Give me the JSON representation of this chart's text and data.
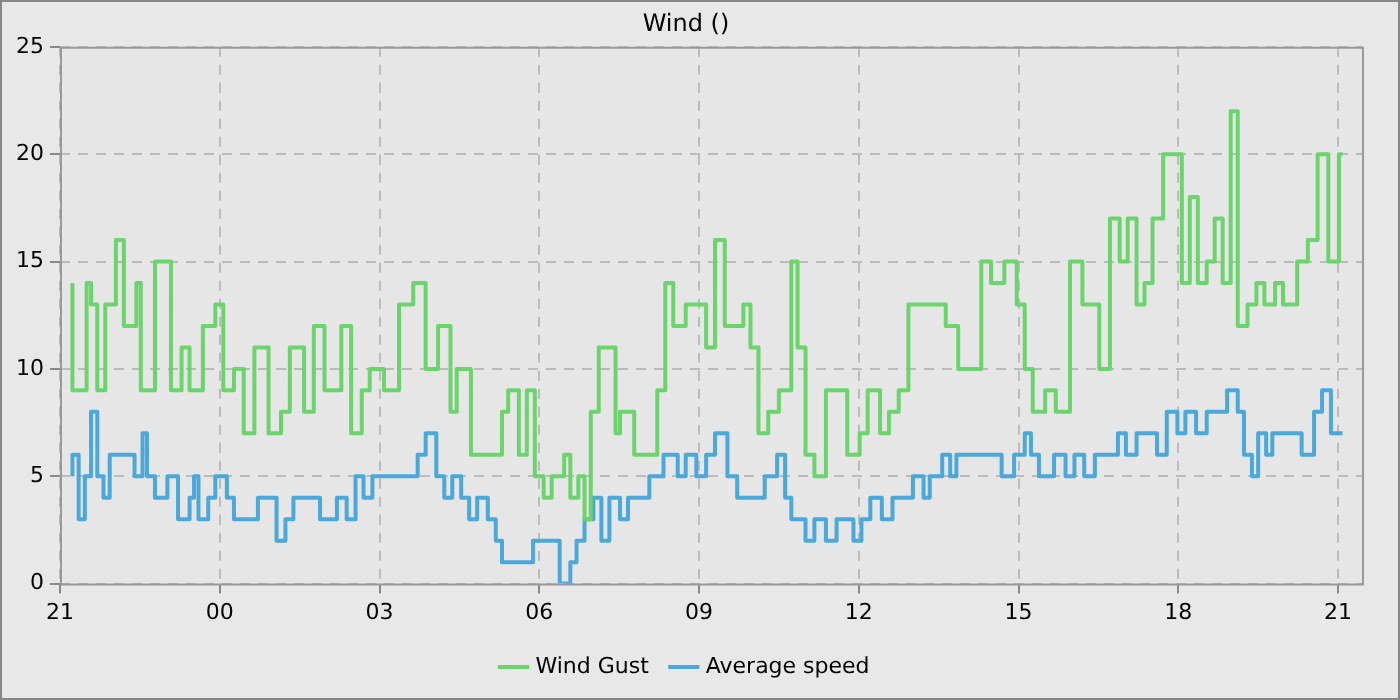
{
  "chart_data": {
    "type": "step",
    "title": "Wind ()",
    "xlim": [
      "2000-01-01T21:00",
      "2000-01-02T21:27"
    ],
    "ylim": [
      0,
      25
    ],
    "xticks": [
      {
        "value": "2000-01-01T21:00",
        "label": "21"
      },
      {
        "value": "2000-01-02T00:00",
        "label": "00"
      },
      {
        "value": "2000-01-02T03:00",
        "label": "03"
      },
      {
        "value": "2000-01-02T06:00",
        "label": "06"
      },
      {
        "value": "2000-01-02T09:00",
        "label": "09"
      },
      {
        "value": "2000-01-02T12:00",
        "label": "12"
      },
      {
        "value": "2000-01-02T15:00",
        "label": "15"
      },
      {
        "value": "2000-01-02T18:00",
        "label": "18"
      },
      {
        "value": "2000-01-02T21:00",
        "label": "21"
      }
    ],
    "yticks": [
      0,
      5,
      10,
      15,
      20,
      25
    ],
    "grid": true,
    "legend": "bottom",
    "marker": "none",
    "line_style": "solid",
    "series": [
      {
        "name": "Wind Gust",
        "color": "#6cd46c",
        "x": [
          "2000-01-01T21:14",
          "2000-01-01T21:30",
          "2000-01-01T21:35",
          "2000-01-01T21:42",
          "2000-01-01T21:51",
          "2000-01-01T22:03",
          "2000-01-01T22:12",
          "2000-01-01T22:26",
          "2000-01-01T22:31",
          "2000-01-01T22:47",
          "2000-01-01T23:05",
          "2000-01-01T23:17",
          "2000-01-01T23:26",
          "2000-01-01T23:41",
          "2000-01-01T23:55",
          "2000-01-02T00:04",
          "2000-01-02T00:16",
          "2000-01-02T00:27",
          "2000-01-02T00:39",
          "2000-01-02T00:55",
          "2000-01-02T01:09",
          "2000-01-02T01:19",
          "2000-01-02T01:35",
          "2000-01-02T01:46",
          "2000-01-02T01:58",
          "2000-01-02T02:17",
          "2000-01-02T02:28",
          "2000-01-02T02:40",
          "2000-01-02T02:49",
          "2000-01-02T03:05",
          "2000-01-02T03:22",
          "2000-01-02T03:38",
          "2000-01-02T03:52",
          "2000-01-02T04:06",
          "2000-01-02T04:20",
          "2000-01-02T04:27",
          "2000-01-02T04:43",
          "2000-01-02T05:18",
          "2000-01-02T05:25",
          "2000-01-02T05:37",
          "2000-01-02T05:46",
          "2000-01-02T05:55",
          "2000-01-02T06:05",
          "2000-01-02T06:14",
          "2000-01-02T06:28",
          "2000-01-02T06:35",
          "2000-01-02T06:44",
          "2000-01-02T06:51",
          "2000-01-02T06:58",
          "2000-01-02T07:07",
          "2000-01-02T07:26",
          "2000-01-02T07:31",
          "2000-01-02T07:47",
          "2000-01-02T08:13",
          "2000-01-02T08:22",
          "2000-01-02T08:31",
          "2000-01-02T08:45",
          "2000-01-02T09:08",
          "2000-01-02T09:18",
          "2000-01-02T09:29",
          "2000-01-02T09:50",
          "2000-01-02T09:58",
          "2000-01-02T10:07",
          "2000-01-02T10:18",
          "2000-01-02T10:30",
          "2000-01-02T10:44",
          "2000-01-02T10:51",
          "2000-01-02T11:00",
          "2000-01-02T11:10",
          "2000-01-02T11:23",
          "2000-01-02T11:47",
          "2000-01-02T12:01",
          "2000-01-02T12:10",
          "2000-01-02T12:24",
          "2000-01-02T12:34",
          "2000-01-02T12:45",
          "2000-01-02T12:56",
          "2000-01-02T13:38",
          "2000-01-02T13:52",
          "2000-01-02T14:18",
          "2000-01-02T14:29",
          "2000-01-02T14:44",
          "2000-01-02T14:58",
          "2000-01-02T15:07",
          "2000-01-02T15:16",
          "2000-01-02T15:30",
          "2000-01-02T15:42",
          "2000-01-02T15:58",
          "2000-01-02T16:12",
          "2000-01-02T16:31",
          "2000-01-02T16:43",
          "2000-01-02T16:54",
          "2000-01-02T17:03",
          "2000-01-02T17:13",
          "2000-01-02T17:22",
          "2000-01-02T17:31",
          "2000-01-02T17:43",
          "2000-01-02T18:04",
          "2000-01-02T18:13",
          "2000-01-02T18:22",
          "2000-01-02T18:32",
          "2000-01-02T18:41",
          "2000-01-02T18:50",
          "2000-01-02T18:59",
          "2000-01-02T19:07",
          "2000-01-02T19:18",
          "2000-01-02T19:28",
          "2000-01-02T19:37",
          "2000-01-02T19:49",
          "2000-01-02T19:58",
          "2000-01-02T20:14",
          "2000-01-02T20:26",
          "2000-01-02T20:37",
          "2000-01-02T20:49",
          "2000-01-02T21:01",
          "2000-01-02T21:05"
        ],
        "values": [
          14,
          9,
          14,
          13,
          9,
          13,
          16,
          12,
          14,
          9,
          15,
          9,
          11,
          9,
          12,
          13,
          9,
          10,
          7,
          11,
          7,
          8,
          11,
          8,
          12,
          9,
          12,
          7,
          9,
          10,
          9,
          13,
          14,
          10,
          12,
          8,
          10,
          6,
          8,
          9,
          6,
          9,
          5,
          4,
          5,
          6,
          4,
          5,
          3,
          8,
          11,
          7,
          8,
          6,
          9,
          14,
          12,
          13,
          11,
          16,
          12,
          13,
          11,
          7,
          8,
          9,
          15,
          11,
          6,
          5,
          9,
          6,
          7,
          9,
          7,
          8,
          9,
          13,
          12,
          10,
          15,
          14,
          15,
          13,
          10,
          8,
          9,
          8,
          15,
          13,
          10,
          17,
          15,
          17,
          13,
          14,
          17,
          20,
          14,
          18,
          14,
          15,
          17,
          14,
          22,
          12,
          13,
          14,
          13,
          14,
          13,
          15,
          16,
          20,
          15,
          20
        ]
      },
      {
        "name": "Average speed",
        "color": "#4aa8dc",
        "x": [
          "2000-01-01T21:14",
          "2000-01-01T21:21",
          "2000-01-01T21:28",
          "2000-01-01T21:35",
          "2000-01-01T21:42",
          "2000-01-01T21:49",
          "2000-01-01T21:56",
          "2000-01-01T22:24",
          "2000-01-01T22:33",
          "2000-01-01T22:38",
          "2000-01-01T22:47",
          "2000-01-01T23:01",
          "2000-01-01T23:13",
          "2000-01-01T23:26",
          "2000-01-01T23:31",
          "2000-01-01T23:36",
          "2000-01-01T23:47",
          "2000-01-01T23:55",
          "2000-01-02T00:08",
          "2000-01-02T00:16",
          "2000-01-02T00:43",
          "2000-01-02T01:04",
          "2000-01-02T01:14",
          "2000-01-02T01:23",
          "2000-01-02T01:53",
          "2000-01-02T02:12",
          "2000-01-02T02:23",
          "2000-01-02T02:33",
          "2000-01-02T02:42",
          "2000-01-02T02:52",
          "2000-01-02T03:43",
          "2000-01-02T03:52",
          "2000-01-02T04:04",
          "2000-01-02T04:13",
          "2000-01-02T04:22",
          "2000-01-02T04:32",
          "2000-01-02T04:41",
          "2000-01-02T04:50",
          "2000-01-02T05:02",
          "2000-01-02T05:11",
          "2000-01-02T05:18",
          "2000-01-02T05:53",
          "2000-01-02T06:23",
          "2000-01-02T06:35",
          "2000-01-02T06:42",
          "2000-01-02T06:51",
          "2000-01-02T07:01",
          "2000-01-02T07:10",
          "2000-01-02T07:19",
          "2000-01-02T07:31",
          "2000-01-02T07:40",
          "2000-01-02T08:04",
          "2000-01-02T08:20",
          "2000-01-02T08:36",
          "2000-01-02T08:45",
          "2000-01-02T08:57",
          "2000-01-02T09:08",
          "2000-01-02T09:18",
          "2000-01-02T09:32",
          "2000-01-02T09:43",
          "2000-01-02T10:14",
          "2000-01-02T10:28",
          "2000-01-02T10:37",
          "2000-01-02T10:44",
          "2000-01-02T11:00",
          "2000-01-02T11:10",
          "2000-01-02T11:23",
          "2000-01-02T11:35",
          "2000-01-02T11:54",
          "2000-01-02T12:03",
          "2000-01-02T12:13",
          "2000-01-02T12:26",
          "2000-01-02T12:38",
          "2000-01-02T13:01",
          "2000-01-02T13:13",
          "2000-01-02T13:20",
          "2000-01-02T13:34",
          "2000-01-02T13:43",
          "2000-01-02T13:50",
          "2000-01-02T14:41",
          "2000-01-02T14:55",
          "2000-01-02T15:07",
          "2000-01-02T15:14",
          "2000-01-02T15:23",
          "2000-01-02T15:40",
          "2000-01-02T15:53",
          "2000-01-02T16:03",
          "2000-01-02T16:14",
          "2000-01-02T16:26",
          "2000-01-02T16:52",
          "2000-01-02T17:01",
          "2000-01-02T17:13",
          "2000-01-02T17:36",
          "2000-01-02T17:47",
          "2000-01-02T17:59",
          "2000-01-02T18:08",
          "2000-01-02T18:20",
          "2000-01-02T18:32",
          "2000-01-02T18:55",
          "2000-01-02T19:07",
          "2000-01-02T19:14",
          "2000-01-02T19:23",
          "2000-01-02T19:30",
          "2000-01-02T19:39",
          "2000-01-02T19:46",
          "2000-01-02T20:19",
          "2000-01-02T20:33",
          "2000-01-02T20:42",
          "2000-01-02T20:52",
          "2000-01-02T20:56",
          "2000-01-02T21:05"
        ],
        "values": [
          5,
          6,
          3,
          5,
          8,
          5,
          4,
          6,
          5,
          7,
          5,
          4,
          5,
          3,
          4,
          5,
          3,
          4,
          5,
          4,
          3,
          4,
          2,
          3,
          4,
          3,
          4,
          3,
          5,
          4,
          5,
          6,
          7,
          5,
          4,
          5,
          4,
          3,
          4,
          3,
          2,
          1,
          2,
          0,
          1,
          2,
          3,
          4,
          2,
          4,
          3,
          4,
          5,
          6,
          5,
          6,
          5,
          6,
          7,
          5,
          4,
          5,
          6,
          4,
          3,
          2,
          3,
          2,
          3,
          2,
          3,
          4,
          3,
          4,
          5,
          4,
          5,
          6,
          5,
          6,
          5,
          6,
          7,
          6,
          5,
          6,
          5,
          6,
          5,
          6,
          7,
          6,
          7,
          6,
          8,
          7,
          8,
          7,
          8,
          9,
          8,
          6,
          5,
          7,
          6,
          7,
          6,
          8,
          9,
          7,
          7
        ]
      }
    ]
  }
}
